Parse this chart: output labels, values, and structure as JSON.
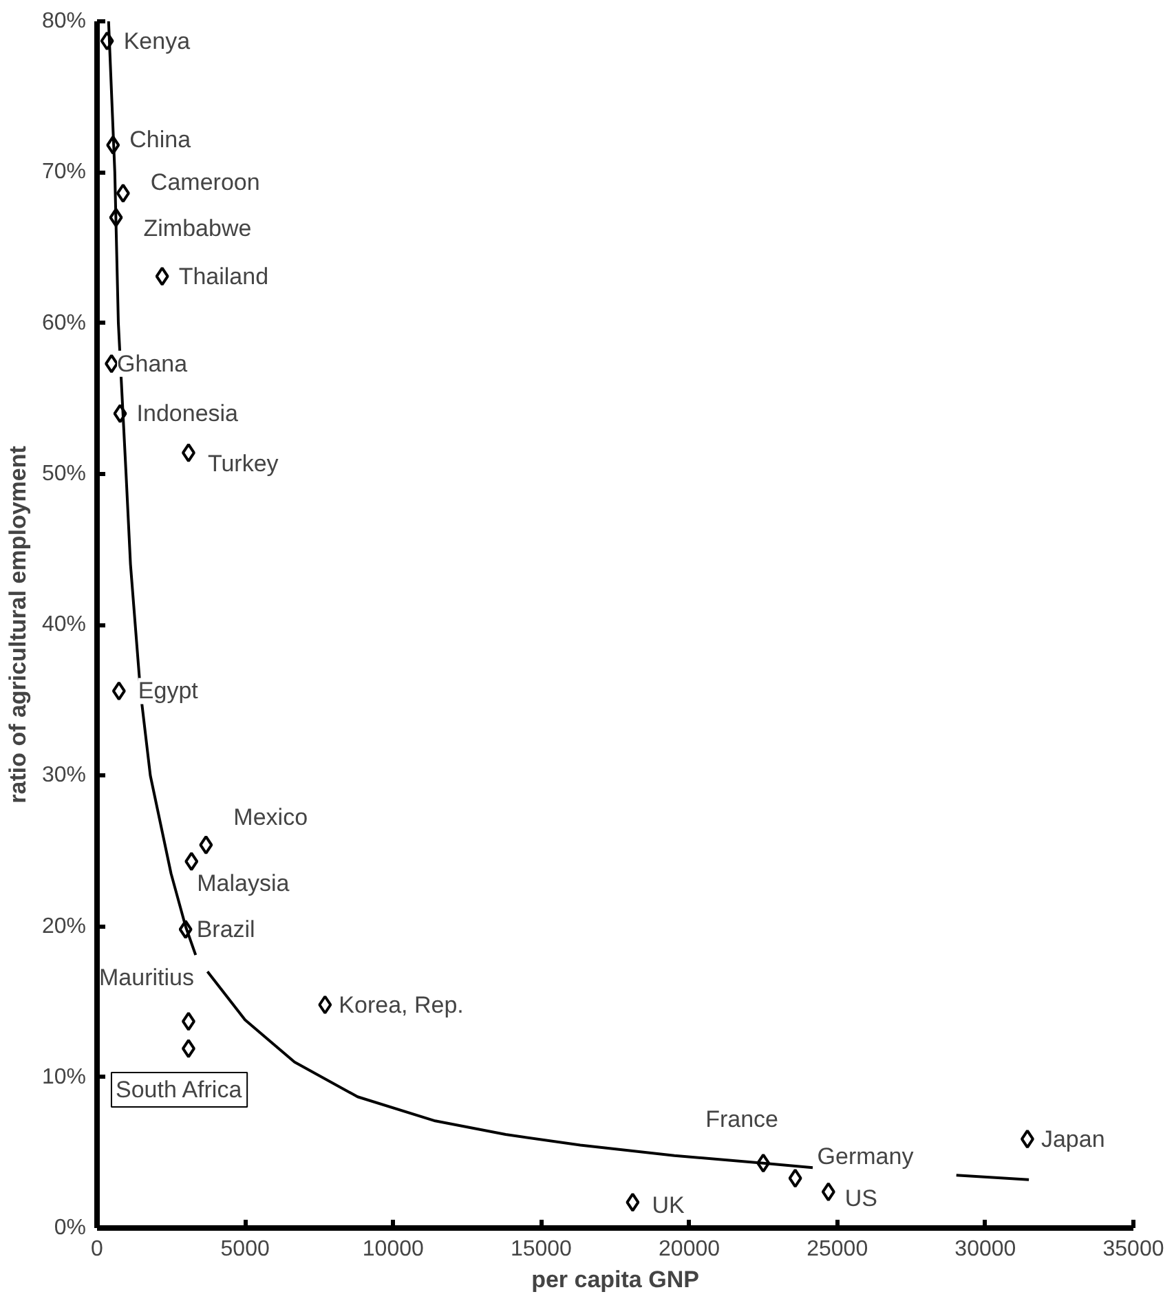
{
  "chart_data": {
    "type": "scatter",
    "xlabel": "per capita GNP",
    "ylabel": "ratio of agricultural employment",
    "xlim": [
      0,
      35000
    ],
    "ylim": [
      0,
      80
    ],
    "xticks": [
      0,
      5000,
      10000,
      15000,
      20000,
      25000,
      30000,
      35000
    ],
    "yticks": [
      {
        "value": 0,
        "label": "0%"
      },
      {
        "value": 10,
        "label": "10%"
      },
      {
        "value": 20,
        "label": "20%"
      },
      {
        "value": 30,
        "label": "30%"
      },
      {
        "value": 40,
        "label": "40%"
      },
      {
        "value": 50,
        "label": "50%"
      },
      {
        "value": 60,
        "label": "60%"
      },
      {
        "value": 70,
        "label": "70%"
      },
      {
        "value": 80,
        "label": "80%"
      }
    ],
    "grid": false,
    "series": [
      {
        "color": "#000000",
        "marker": "diamond",
        "x": [
          340,
          540,
          880,
          640,
          2200,
          490,
          780,
          3090,
          740,
          3680,
          3190,
          2990,
          3090,
          3090,
          7700,
          18090,
          22500,
          23580,
          24700,
          31420
        ],
        "values": [
          78.7,
          71.8,
          68.6,
          67.0,
          63.1,
          57.3,
          54.0,
          51.4,
          35.6,
          25.4,
          24.3,
          19.8,
          13.7,
          11.9,
          14.8,
          1.7,
          4.3,
          3.3,
          2.4,
          5.9
        ]
      },
      {
        "type": "line",
        "color": "#000000",
        "marker": "none",
        "line_style": "solid",
        "x": [
          390,
          600,
          720,
          980,
          1130,
          1470,
          1800,
          2500,
          2990,
          3330,
          3530,
          3730,
          5000,
          6670,
          8800,
          11420,
          13800,
          16320,
          19500,
          22500,
          24170,
          26600,
          29020,
          31470
        ],
        "values": [
          80,
          70,
          60,
          50,
          44,
          35.5,
          30,
          23.5,
          20,
          18.1,
          null,
          17,
          13.8,
          11,
          8.7,
          7.1,
          6.2,
          5.5,
          4.8,
          4.3,
          4.0,
          null,
          3.5,
          3.2
        ]
      }
    ],
    "annotations": [
      {
        "text": "Kenya",
        "x": 340,
        "y": 78.7
      },
      {
        "text": "China",
        "x": 540,
        "y": 71.8
      },
      {
        "text": "Cameroon",
        "x": 880,
        "y": 68.6
      },
      {
        "text": "Zimbabwe",
        "x": 640,
        "y": 67.0
      },
      {
        "text": "Thailand",
        "x": 2200,
        "y": 63.1
      },
      {
        "text": "Ghana",
        "x": 490,
        "y": 57.3
      },
      {
        "text": "Indonesia",
        "x": 780,
        "y": 54.0
      },
      {
        "text": "Turkey",
        "x": 3090,
        "y": 51.4
      },
      {
        "text": "Egypt",
        "x": 740,
        "y": 35.6
      },
      {
        "text": "Mexico",
        "x": 3680,
        "y": 25.4
      },
      {
        "text": "Malaysia",
        "x": 3190,
        "y": 24.3
      },
      {
        "text": "Brazil",
        "x": 2990,
        "y": 19.8
      },
      {
        "text": "Mauritius",
        "x": 3090,
        "y": 13.7
      },
      {
        "text": "South Africa",
        "x": 3090,
        "y": 11.9
      },
      {
        "text": "Korea, Rep.",
        "x": 7700,
        "y": 14.8
      },
      {
        "text": "UK",
        "x": 18090,
        "y": 1.7
      },
      {
        "text": "France",
        "x": 22500,
        "y": 4.3
      },
      {
        "text": "Germany",
        "x": 23580,
        "y": 3.3
      },
      {
        "text": "US",
        "x": 24700,
        "y": 2.4
      },
      {
        "text": "Japan",
        "x": 31420,
        "y": 5.9
      }
    ]
  }
}
